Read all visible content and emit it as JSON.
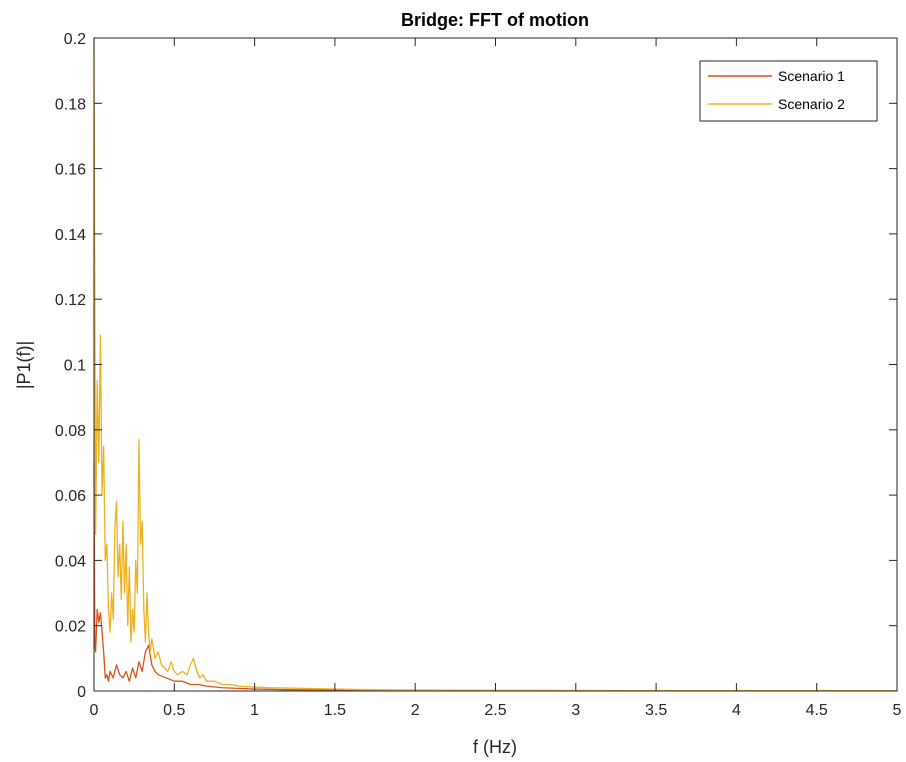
{
  "chart_data": {
    "type": "line",
    "title": "Bridge: FFT of motion",
    "xlabel": "f (Hz)",
    "ylabel": "|P1(f)|",
    "xlim": [
      0,
      5
    ],
    "ylim": [
      0,
      0.2
    ],
    "xticks": [
      0,
      0.5,
      1,
      1.5,
      2,
      2.5,
      3,
      3.5,
      4,
      4.5,
      5
    ],
    "xtick_labels": [
      "0",
      "0.5",
      "1",
      "1.5",
      "2",
      "2.5",
      "3",
      "3.5",
      "4",
      "4.5",
      "5"
    ],
    "yticks": [
      0,
      0.02,
      0.04,
      0.06,
      0.08,
      0.1,
      0.12,
      0.14,
      0.16,
      0.18,
      0.2
    ],
    "ytick_labels": [
      "0",
      "0.02",
      "0.04",
      "0.06",
      "0.08",
      "0.1",
      "0.12",
      "0.14",
      "0.16",
      "0.18",
      "0.2"
    ],
    "grid": false,
    "legend_position": "top-right",
    "series": [
      {
        "name": "Scenario 1",
        "color": "#D95319",
        "x": [
          0,
          0.005,
          0.01,
          0.02,
          0.03,
          0.04,
          0.05,
          0.06,
          0.07,
          0.08,
          0.09,
          0.1,
          0.12,
          0.14,
          0.16,
          0.18,
          0.2,
          0.22,
          0.24,
          0.26,
          0.28,
          0.3,
          0.32,
          0.34,
          0.36,
          0.38,
          0.4,
          0.45,
          0.5,
          0.55,
          0.6,
          0.65,
          0.7,
          0.8,
          0.9,
          1.0,
          1.2,
          1.5,
          2.0,
          2.5,
          3.0,
          3.5,
          4.0,
          4.5,
          5.0
        ],
        "y": [
          0.07,
          0.015,
          0.012,
          0.025,
          0.021,
          0.024,
          0.018,
          0.012,
          0.004,
          0.005,
          0.003,
          0.006,
          0.004,
          0.008,
          0.005,
          0.004,
          0.006,
          0.003,
          0.007,
          0.004,
          0.009,
          0.006,
          0.012,
          0.014,
          0.008,
          0.006,
          0.005,
          0.004,
          0.003,
          0.003,
          0.002,
          0.002,
          0.0015,
          0.001,
          0.0008,
          0.0006,
          0.0004,
          0.0003,
          0.0002,
          0.00015,
          0.0001,
          0.0001,
          0.0001,
          0.0001,
          0.0001
        ]
      },
      {
        "name": "Scenario 2",
        "color": "#EDB120",
        "x": [
          0,
          0.005,
          0.01,
          0.02,
          0.03,
          0.04,
          0.05,
          0.06,
          0.07,
          0.08,
          0.09,
          0.1,
          0.11,
          0.12,
          0.13,
          0.14,
          0.15,
          0.16,
          0.17,
          0.18,
          0.19,
          0.2,
          0.21,
          0.22,
          0.23,
          0.24,
          0.25,
          0.26,
          0.27,
          0.28,
          0.29,
          0.3,
          0.31,
          0.32,
          0.33,
          0.34,
          0.35,
          0.36,
          0.38,
          0.4,
          0.42,
          0.44,
          0.46,
          0.48,
          0.5,
          0.52,
          0.55,
          0.58,
          0.6,
          0.62,
          0.64,
          0.66,
          0.68,
          0.7,
          0.75,
          0.8,
          0.85,
          0.9,
          1.0,
          1.1,
          1.2,
          1.3,
          1.5,
          1.7,
          2.0,
          2.5,
          3.0,
          3.5,
          4.0,
          4.5,
          5.0
        ],
        "y": [
          0.2,
          0.12,
          0.048,
          0.095,
          0.07,
          0.109,
          0.06,
          0.075,
          0.04,
          0.045,
          0.025,
          0.018,
          0.03,
          0.022,
          0.05,
          0.058,
          0.035,
          0.045,
          0.028,
          0.052,
          0.03,
          0.045,
          0.02,
          0.038,
          0.015,
          0.025,
          0.018,
          0.04,
          0.03,
          0.077,
          0.045,
          0.052,
          0.025,
          0.015,
          0.03,
          0.018,
          0.012,
          0.016,
          0.01,
          0.012,
          0.008,
          0.007,
          0.006,
          0.009,
          0.006,
          0.005,
          0.006,
          0.005,
          0.008,
          0.01,
          0.006,
          0.004,
          0.005,
          0.003,
          0.003,
          0.002,
          0.002,
          0.0015,
          0.0012,
          0.001,
          0.0009,
          0.0008,
          0.0006,
          0.0004,
          0.0003,
          0.0002,
          0.00015,
          0.0001,
          0.0001,
          0.0001,
          0.0001
        ]
      }
    ]
  }
}
